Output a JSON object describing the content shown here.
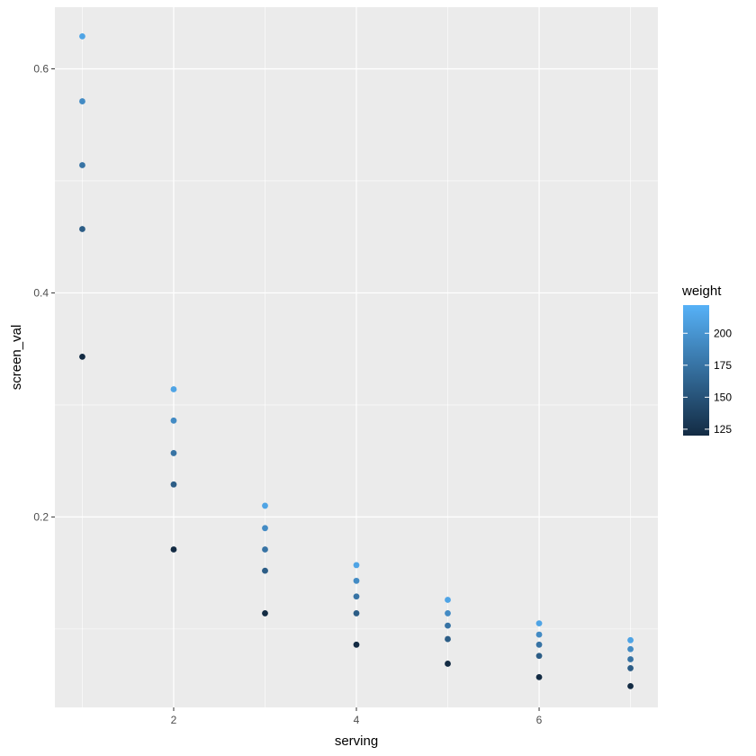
{
  "chart_data": {
    "type": "scatter",
    "title": "",
    "xlabel": "serving",
    "ylabel": "screen_val",
    "xlim": [
      0.7,
      7.3
    ],
    "ylim": [
      0.03,
      0.655
    ],
    "x_ticks": [
      2,
      4,
      6
    ],
    "x_tick_labels": [
      "2",
      "4",
      "6"
    ],
    "y_ticks": [
      0.2,
      0.4,
      0.6
    ],
    "y_tick_labels": [
      "0.2",
      "0.4",
      "0.6"
    ],
    "grid": true,
    "legend": {
      "title": "weight",
      "placement": "right",
      "type": "colorbar",
      "range": [
        120,
        222
      ],
      "ticks": [
        125,
        150,
        175,
        200
      ],
      "tick_labels": [
        "125",
        "150",
        "175",
        "200"
      ],
      "color_low": "#132B43",
      "color_high": "#56B1F7"
    },
    "colors": {
      "panel_background": "#EBEBEB",
      "gridline": "#FFFFFF"
    },
    "points": [
      {
        "x": 1,
        "y": 0.343,
        "weight": 120
      },
      {
        "x": 1,
        "y": 0.457,
        "weight": 158
      },
      {
        "x": 1,
        "y": 0.514,
        "weight": 175
      },
      {
        "x": 1,
        "y": 0.571,
        "weight": 193
      },
      {
        "x": 1,
        "y": 0.629,
        "weight": 212
      },
      {
        "x": 2,
        "y": 0.171,
        "weight": 120
      },
      {
        "x": 2,
        "y": 0.229,
        "weight": 158
      },
      {
        "x": 2,
        "y": 0.257,
        "weight": 175
      },
      {
        "x": 2,
        "y": 0.286,
        "weight": 193
      },
      {
        "x": 2,
        "y": 0.314,
        "weight": 212
      },
      {
        "x": 3,
        "y": 0.114,
        "weight": 120
      },
      {
        "x": 3,
        "y": 0.152,
        "weight": 158
      },
      {
        "x": 3,
        "y": 0.171,
        "weight": 175
      },
      {
        "x": 3,
        "y": 0.19,
        "weight": 193
      },
      {
        "x": 3,
        "y": 0.21,
        "weight": 212
      },
      {
        "x": 4,
        "y": 0.086,
        "weight": 120
      },
      {
        "x": 4,
        "y": 0.114,
        "weight": 158
      },
      {
        "x": 4,
        "y": 0.129,
        "weight": 175
      },
      {
        "x": 4,
        "y": 0.143,
        "weight": 193
      },
      {
        "x": 4,
        "y": 0.157,
        "weight": 212
      },
      {
        "x": 5,
        "y": 0.069,
        "weight": 120
      },
      {
        "x": 5,
        "y": 0.091,
        "weight": 158
      },
      {
        "x": 5,
        "y": 0.103,
        "weight": 175
      },
      {
        "x": 5,
        "y": 0.114,
        "weight": 193
      },
      {
        "x": 5,
        "y": 0.126,
        "weight": 212
      },
      {
        "x": 6,
        "y": 0.057,
        "weight": 120
      },
      {
        "x": 6,
        "y": 0.076,
        "weight": 158
      },
      {
        "x": 6,
        "y": 0.086,
        "weight": 175
      },
      {
        "x": 6,
        "y": 0.095,
        "weight": 193
      },
      {
        "x": 6,
        "y": 0.105,
        "weight": 212
      },
      {
        "x": 7,
        "y": 0.049,
        "weight": 120
      },
      {
        "x": 7,
        "y": 0.065,
        "weight": 158
      },
      {
        "x": 7,
        "y": 0.073,
        "weight": 175
      },
      {
        "x": 7,
        "y": 0.082,
        "weight": 193
      },
      {
        "x": 7,
        "y": 0.09,
        "weight": 212
      }
    ]
  }
}
